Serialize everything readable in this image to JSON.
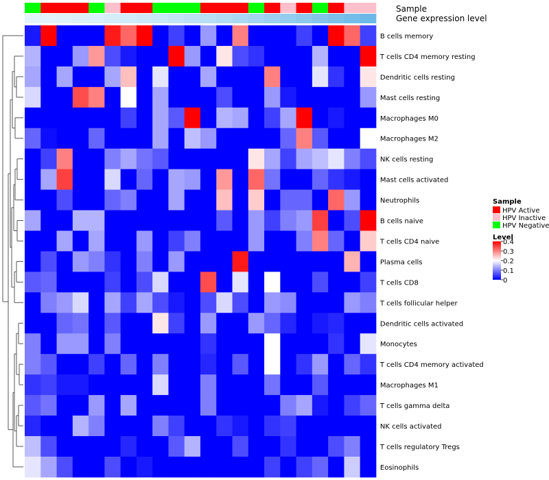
{
  "chart_data": {
    "type": "heatmap",
    "title": "",
    "annotation_tracks": [
      {
        "name": "Sample",
        "label": "Sample"
      },
      {
        "name": "Gene expression level",
        "label": "Gene expression level"
      }
    ],
    "sample_groups": [
      "HPV Negative",
      "HPV Active",
      "HPV Active",
      "HPV Active",
      "HPV Negative",
      "HPV Inactive",
      "HPV Active",
      "HPV Active",
      "HPV Negative",
      "HPV Negative",
      "HPV Negative",
      "HPV Active",
      "HPV Active",
      "HPV Active",
      "HPV Negative",
      "HPV Active",
      "HPV Inactive",
      "HPV Active",
      "HPV Negative",
      "HPV Active",
      "HPV Inactive",
      "HPV Inactive"
    ],
    "expression_track_colors": [
      "#e4f4fb",
      "#e2f3fb",
      "#dff2fa",
      "#dcf0fa",
      "#d9eff9",
      "#d5edf9",
      "#d1ebf8",
      "#cde9f8",
      "#c8e7f7",
      "#c3e4f6",
      "#bde1f5",
      "#b7def4",
      "#b1dbf3",
      "#aad8f2",
      "#a3d4f1",
      "#9cd0ef",
      "#94ccee",
      "#8cc8ec",
      "#84c4eb",
      "#7cc0e9",
      "#74bce8",
      "#6cb8e6"
    ],
    "rows": [
      "B cells memory",
      "T cells CD4 memory resting",
      "Dendritic cells resting",
      "Mast cells resting",
      "Macrophages M0",
      "Macrophages M2",
      "NK cells resting",
      "Mast cells activated",
      "Neutrophils",
      "B cells naive",
      "T cells CD4 naive",
      "Plasma cells",
      "T cells CD8",
      "T cells follicular helper",
      "Dendritic cells activated",
      "Monocytes",
      "T cells CD4 memory activated",
      "Macrophages M1",
      "T cells gamma delta",
      "NK cells activated",
      "T cells regulatory  Tregs",
      "Eosinophils"
    ],
    "values": [
      [
        0.02,
        0.4,
        0.0,
        0.0,
        0.0,
        0.38,
        0.32,
        0.4,
        0.0,
        0.05,
        0.0,
        0.12,
        0.0,
        0.3,
        0.0,
        0.0,
        0.0,
        0.05,
        0.0,
        0.4,
        0.32,
        0.05
      ],
      [
        0.14,
        0.0,
        0.0,
        0.12,
        0.28,
        0.06,
        0.02,
        0.0,
        0.0,
        0.4,
        0.12,
        0.0,
        0.22,
        0.06,
        0.04,
        0.0,
        0.0,
        0.0,
        0.14,
        0.0,
        0.0,
        0.4
      ],
      [
        0.13,
        0.0,
        0.13,
        0.0,
        0.0,
        0.13,
        0.25,
        0.0,
        0.18,
        0.0,
        0.0,
        0.13,
        0.0,
        0.0,
        0.0,
        0.3,
        0.0,
        0.0,
        0.18,
        0.04,
        0.0,
        0.22
      ],
      [
        0.17,
        0.0,
        0.0,
        0.34,
        0.3,
        0.0,
        0.2,
        0.0,
        0.13,
        0.0,
        0.0,
        0.0,
        0.06,
        0.0,
        0.0,
        0.12,
        0.02,
        0.0,
        0.0,
        0.0,
        0.0,
        0.12
      ],
      [
        0.0,
        0.0,
        0.0,
        0.0,
        0.0,
        0.0,
        0.05,
        0.0,
        0.13,
        0.07,
        0.4,
        0.0,
        0.14,
        0.13,
        0.0,
        0.05,
        0.13,
        0.4,
        0.0,
        0.02,
        0.0,
        0.0
      ],
      [
        0.08,
        0.01,
        0.0,
        0.0,
        0.08,
        0.0,
        0.0,
        0.0,
        0.13,
        0.0,
        0.15,
        0.12,
        0.0,
        0.0,
        0.0,
        0.0,
        0.08,
        0.3,
        0.07,
        0.0,
        0.0,
        0.2
      ],
      [
        0.0,
        0.05,
        0.3,
        0.0,
        0.0,
        0.1,
        0.13,
        0.09,
        0.07,
        0.0,
        0.0,
        0.0,
        0.0,
        0.0,
        0.22,
        0.13,
        0.05,
        0.13,
        0.15,
        0.18,
        0.1,
        0.06
      ],
      [
        0.0,
        0.13,
        0.35,
        0.0,
        0.0,
        0.17,
        0.0,
        0.08,
        0.0,
        0.13,
        0.12,
        0.0,
        0.28,
        0.0,
        0.32,
        0.09,
        0.0,
        0.0,
        0.08,
        0.04,
        0.02,
        0.0
      ],
      [
        0.0,
        0.0,
        0.06,
        0.0,
        0.0,
        0.08,
        0.1,
        0.0,
        0.0,
        0.13,
        0.0,
        0.0,
        0.25,
        0.0,
        0.24,
        0.0,
        0.08,
        0.08,
        0.0,
        0.32,
        0.12,
        0.0
      ],
      [
        0.13,
        0.0,
        0.0,
        0.14,
        0.14,
        0.0,
        0.0,
        0.0,
        0.0,
        0.0,
        0.0,
        0.0,
        0.07,
        0.0,
        0.12,
        0.05,
        0.1,
        0.12,
        0.35,
        0.0,
        0.06,
        0.4
      ],
      [
        0.0,
        0.0,
        0.13,
        0.0,
        0.13,
        0.0,
        0.0,
        0.12,
        0.0,
        0.05,
        0.1,
        0.0,
        0.0,
        0.0,
        0.12,
        0.0,
        0.0,
        0.1,
        0.3,
        0.08,
        0.0,
        0.24
      ],
      [
        0.0,
        0.06,
        0.0,
        0.12,
        0.1,
        0.04,
        0.0,
        0.1,
        0.0,
        0.12,
        0.0,
        0.0,
        0.0,
        0.38,
        0.0,
        0.0,
        0.0,
        0.0,
        0.0,
        0.0,
        0.26,
        0.0
      ],
      [
        0.07,
        0.08,
        0.0,
        0.0,
        0.0,
        0.05,
        0.0,
        0.06,
        0.17,
        0.0,
        0.0,
        0.34,
        0.0,
        0.18,
        0.0,
        0.2,
        0.0,
        0.0,
        0.06,
        0.0,
        0.0,
        0.05
      ],
      [
        0.0,
        0.1,
        0.12,
        0.17,
        0.0,
        0.13,
        0.05,
        0.13,
        0.06,
        0.02,
        0.0,
        0.06,
        0.17,
        0.06,
        0.0,
        0.12,
        0.11,
        0.0,
        0.0,
        0.0,
        0.12,
        0.1
      ],
      [
        0.0,
        0.0,
        0.08,
        0.09,
        0.0,
        0.07,
        0.0,
        0.0,
        0.22,
        0.05,
        0.0,
        0.12,
        0.0,
        0.0,
        0.12,
        0.08,
        0.03,
        0.0,
        0.02,
        0.03,
        0.0,
        0.0
      ],
      [
        0.1,
        0.0,
        0.12,
        0.12,
        0.0,
        0.1,
        0.0,
        0.0,
        0.0,
        0.0,
        0.0,
        0.04,
        0.0,
        0.0,
        0.0,
        0.2,
        0.0,
        0.0,
        0.0,
        0.04,
        0.0,
        0.18
      ],
      [
        0.1,
        0.07,
        0.0,
        0.0,
        0.05,
        0.0,
        0.08,
        0.0,
        0.1,
        0.0,
        0.0,
        0.03,
        0.0,
        0.07,
        0.0,
        0.2,
        0.0,
        0.04,
        0.12,
        0.0,
        0.08,
        0.04
      ],
      [
        0.04,
        0.05,
        0.02,
        0.02,
        0.0,
        0.0,
        0.0,
        0.0,
        0.17,
        0.0,
        0.0,
        0.1,
        0.0,
        0.0,
        0.0,
        0.09,
        0.0,
        0.0,
        0.07,
        0.0,
        0.0,
        0.0
      ],
      [
        0.07,
        0.09,
        0.0,
        0.0,
        0.12,
        0.0,
        0.13,
        0.0,
        0.0,
        0.0,
        0.0,
        0.1,
        0.0,
        0.0,
        0.0,
        0.0,
        0.1,
        0.13,
        0.02,
        0.0,
        0.05,
        0.08
      ],
      [
        0.03,
        0.0,
        0.0,
        0.14,
        0.1,
        0.0,
        0.0,
        0.0,
        0.1,
        0.05,
        0.0,
        0.0,
        0.04,
        0.02,
        0.0,
        0.04,
        0.05,
        0.0,
        0.0,
        0.0,
        0.0,
        0.0
      ],
      [
        0.15,
        0.06,
        0.0,
        0.0,
        0.0,
        0.0,
        0.03,
        0.0,
        0.0,
        0.07,
        0.14,
        0.0,
        0.0,
        0.06,
        0.0,
        0.0,
        0.04,
        0.0,
        0.0,
        0.06,
        0.1,
        0.0
      ],
      [
        0.18,
        0.13,
        0.06,
        0.0,
        0.0,
        0.06,
        0.0,
        0.02,
        0.0,
        0.0,
        0.0,
        0.0,
        0.0,
        0.0,
        0.0,
        0.05,
        0.0,
        0.05,
        0.08,
        0.0,
        0.16,
        0.0
      ]
    ],
    "value_range": [
      0,
      0.4
    ],
    "colorscale": [
      "#0000ff",
      "#ffffff",
      "#ff0000"
    ],
    "legend": {
      "position": "right",
      "sample_title": "Sample",
      "sample_entries": [
        {
          "label": "HPV Active",
          "color": "#ff0000"
        },
        {
          "label": "HPV Inactive",
          "color": "#ffc0cb"
        },
        {
          "label": "HPV Negative",
          "color": "#00ff00"
        }
      ],
      "level_title": "Level",
      "level_ticks": [
        0.4,
        0.3,
        0.2,
        0.1,
        0
      ],
      "level_tick_labels": [
        "0.4",
        "0.3",
        "0.2",
        "0.1",
        "0"
      ]
    },
    "dendrogram": "row clustering (left side)"
  }
}
